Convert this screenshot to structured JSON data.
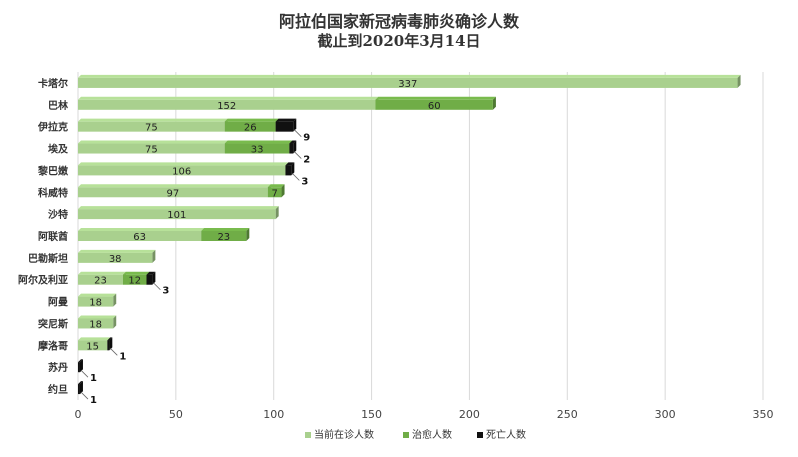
{
  "chart_data": {
    "type": "bar",
    "orientation": "horizontal",
    "stacked": true,
    "title": "阿拉伯国家新冠病毒肺炎确诊人数",
    "subtitle": "截止到2020年3月14日",
    "categories": [
      "卡塔尔",
      "巴林",
      "伊拉克",
      "埃及",
      "黎巴嫩",
      "科威特",
      "沙特",
      "阿联酋",
      "巴勒斯坦",
      "阿尔及利亚",
      "阿曼",
      "突尼斯",
      "摩洛哥",
      "苏丹",
      "约旦"
    ],
    "series": [
      {
        "name": "当前在诊人数",
        "color": "#a9d08e",
        "values": [
          337,
          152,
          75,
          75,
          106,
          97,
          101,
          63,
          38,
          23,
          18,
          18,
          15,
          0,
          0
        ]
      },
      {
        "name": "治愈人数",
        "color": "#70ad47",
        "values": [
          0,
          60,
          26,
          33,
          0,
          7,
          0,
          23,
          0,
          12,
          0,
          0,
          0,
          0,
          0
        ]
      },
      {
        "name": "死亡人数",
        "color": "#111111",
        "values": [
          0,
          0,
          9,
          2,
          3,
          0,
          0,
          0,
          0,
          3,
          0,
          0,
          1,
          1,
          1
        ]
      }
    ],
    "xlim": [
      0,
      350
    ],
    "xticks": [
      0,
      50,
      100,
      150,
      200,
      250,
      300,
      350
    ],
    "grid": true,
    "legend": "bottom"
  }
}
